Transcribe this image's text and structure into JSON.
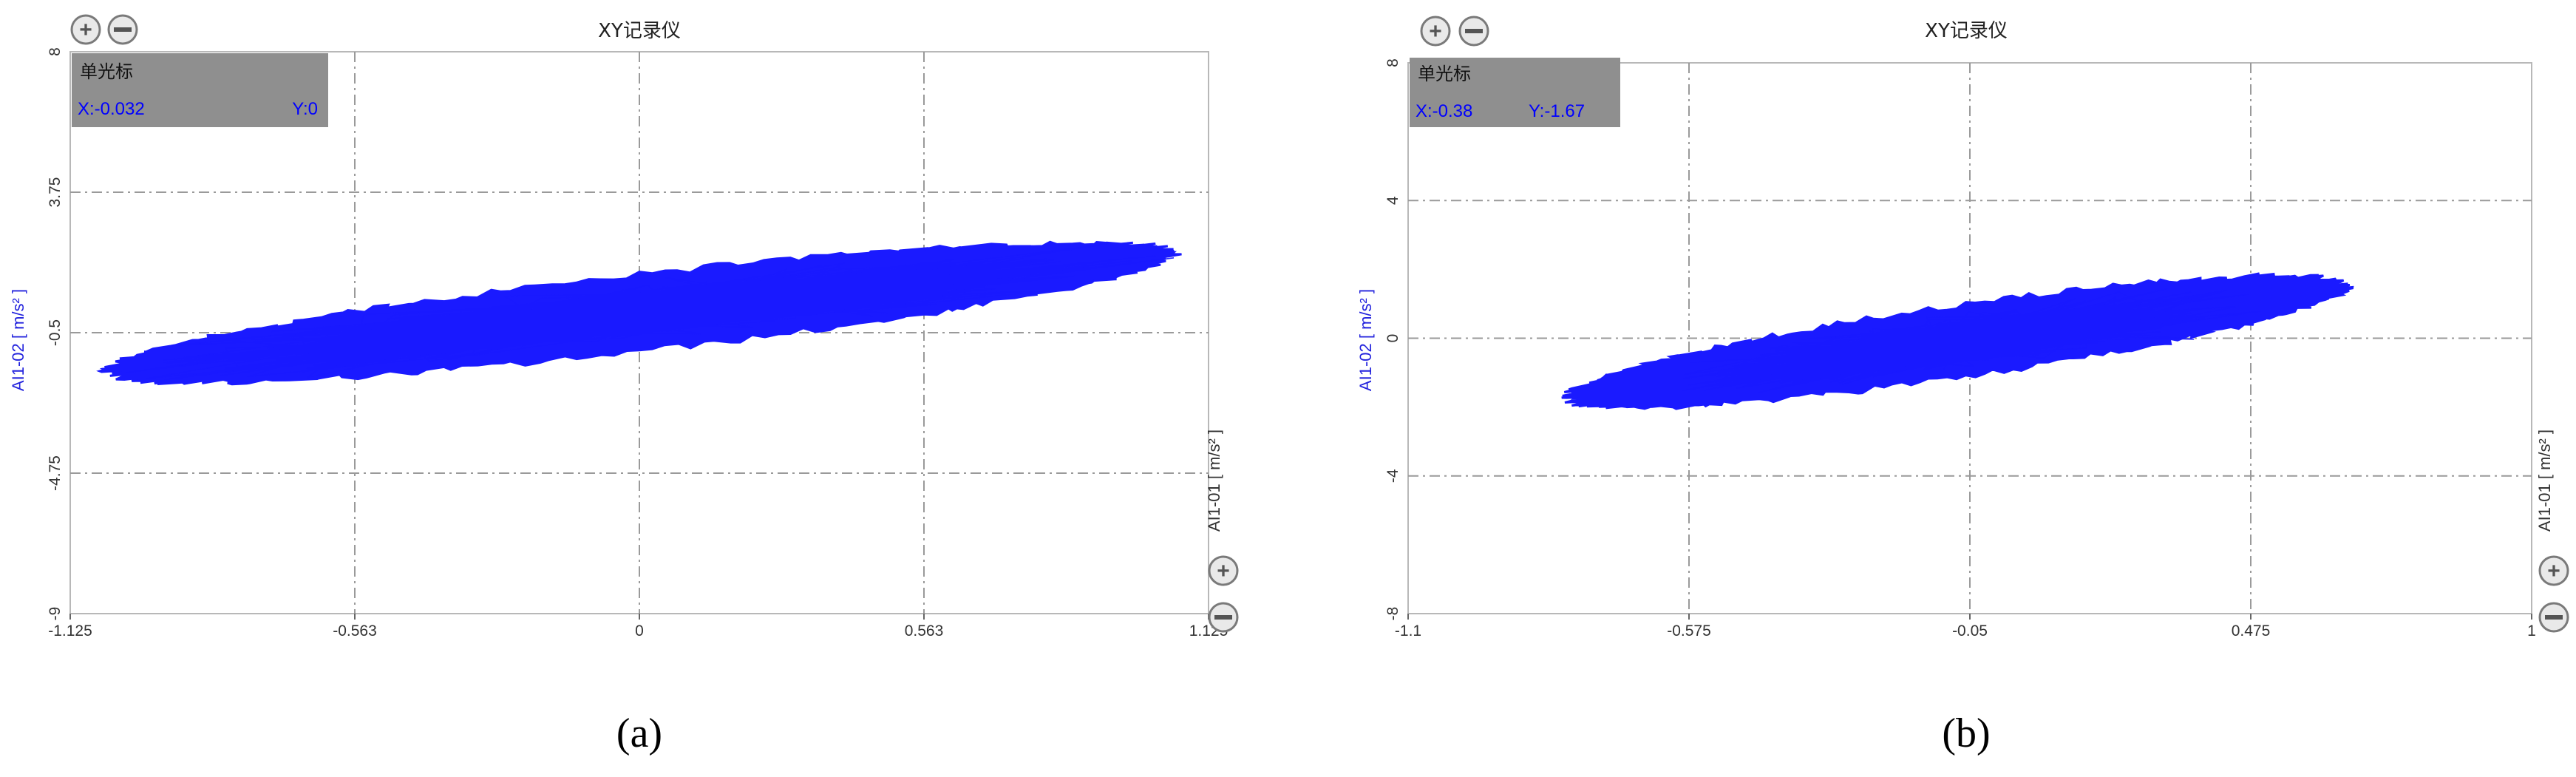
{
  "panels": [
    {
      "id": "a",
      "title": "XY记录仪",
      "caption": "(a)",
      "ylabel": "AI1-02 [ m/s² ]",
      "xlabel": "AI1-01 [ m/s² ]",
      "cursor": {
        "title": "单光标",
        "x": "X:-0.032",
        "y": "Y:0"
      },
      "chart_data": {
        "type": "scatter",
        "xlim": [
          -1.125,
          1.125
        ],
        "ylim": [
          -9,
          8
        ],
        "x_ticks": [
          "-1.125",
          "-0.563",
          "0",
          "0.563",
          "1.125"
        ],
        "y_ticks": [
          "8",
          "3.75",
          "-0.5",
          "-4.75",
          "-9"
        ],
        "y_tick_values": [
          8,
          3.75,
          -0.5,
          -4.75,
          -9
        ],
        "grid": true,
        "series_color": "#1a1aff",
        "envelope": {
          "x_span": [
            -1.125,
            1.125
          ],
          "y_span": [
            -2.0,
            2.2
          ],
          "core_x": [
            -0.8,
            0.82
          ],
          "core_y": [
            -1.7,
            1.9
          ]
        }
      }
    },
    {
      "id": "b",
      "title": "XY记录仪",
      "caption": "(b)",
      "ylabel": "AI1-02 [ m/s² ]",
      "xlabel": "AI1-01 [ m/s² ]",
      "cursor": {
        "title": "单光标",
        "x": "X:-0.38",
        "y": "Y:-1.67"
      },
      "chart_data": {
        "type": "scatter",
        "xlim": [
          -1.1,
          1
        ],
        "ylim": [
          -8,
          8
        ],
        "x_ticks": [
          "-1.1",
          "-0.575",
          "-0.05",
          "0.475",
          "1"
        ],
        "y_ticks": [
          "8",
          "4",
          "0",
          "-4",
          "-8"
        ],
        "y_tick_values": [
          8,
          4,
          0,
          -4,
          -8
        ],
        "grid": true,
        "series_color": "#1a1aff",
        "envelope": {
          "x_span": [
            -0.85,
            0.7
          ],
          "y_span": [
            -2.0,
            1.8
          ]
        }
      }
    }
  ],
  "buttons": {
    "zoom_in_glyph": "+",
    "zoom_out_glyph": "−"
  }
}
